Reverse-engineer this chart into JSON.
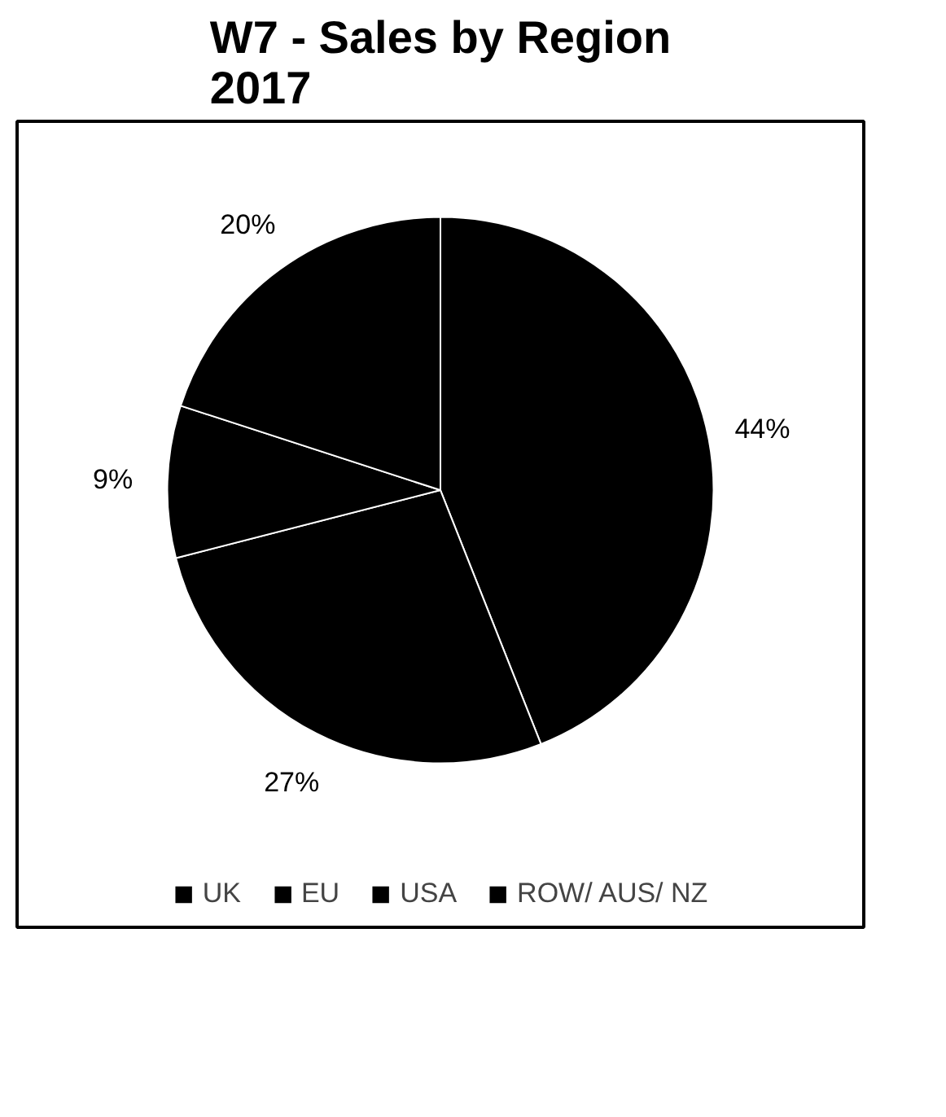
{
  "chart_data": {
    "type": "pie",
    "title": "W7 - Sales by Region\n2017",
    "categories": [
      "UK",
      "EU",
      "USA",
      "ROW/ AUS/ NZ"
    ],
    "values": [
      44,
      27,
      9,
      20
    ],
    "colors": [
      "#000000",
      "#000000",
      "#000000",
      "#000000"
    ],
    "value_labels": [
      "44%",
      "27%",
      "9%",
      "20%"
    ],
    "legend": "bottom"
  }
}
